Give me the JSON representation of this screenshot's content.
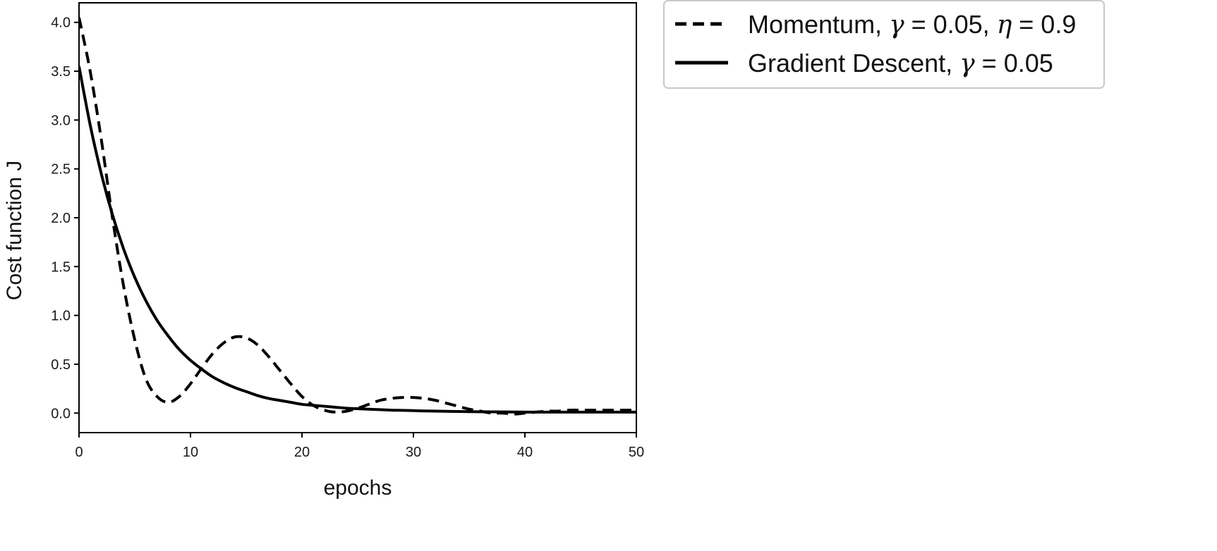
{
  "chart_data": {
    "type": "line",
    "title": "",
    "xlabel": "epochs",
    "ylabel": "Cost function J",
    "xlim": [
      0,
      50
    ],
    "ylim": [
      -0.2,
      4.2
    ],
    "xticks": [
      0,
      10,
      20,
      30,
      40,
      50
    ],
    "xtick_labels": [
      "0",
      "10",
      "20",
      "30",
      "40",
      "50"
    ],
    "yticks": [
      0.0,
      0.5,
      1.0,
      1.5,
      2.0,
      2.5,
      3.0,
      3.5,
      4.0
    ],
    "ytick_labels": [
      "0.0",
      "0.5",
      "1.0",
      "1.5",
      "2.0",
      "2.5",
      "3.0",
      "3.5",
      "4.0"
    ],
    "grid": false,
    "legend_position": "outside-top-right",
    "series": [
      {
        "name": "Momentum, γ = 0.05, η = 0.9",
        "style": "dashed",
        "color": "#000000",
        "x": [
          0,
          1,
          2,
          3,
          4,
          5,
          6,
          7,
          8,
          9,
          10,
          11,
          12,
          13,
          14,
          15,
          16,
          17,
          18,
          19,
          20,
          21,
          22,
          23,
          24,
          25,
          26,
          27,
          28,
          29,
          30,
          31,
          32,
          33,
          34,
          35,
          36,
          37,
          38,
          39,
          40,
          41,
          42,
          43,
          44,
          45,
          46,
          47,
          48,
          49,
          50
        ],
        "y": [
          4.05,
          3.5,
          2.8,
          2.0,
          1.3,
          0.75,
          0.35,
          0.17,
          0.11,
          0.17,
          0.3,
          0.46,
          0.61,
          0.72,
          0.78,
          0.77,
          0.7,
          0.58,
          0.44,
          0.3,
          0.17,
          0.08,
          0.03,
          0.01,
          0.02,
          0.05,
          0.09,
          0.13,
          0.15,
          0.16,
          0.16,
          0.15,
          0.13,
          0.1,
          0.07,
          0.04,
          0.02,
          0.0,
          0.0,
          -0.01,
          0.0,
          0.01,
          0.02,
          0.02,
          0.03,
          0.03,
          0.03,
          0.03,
          0.03,
          0.03,
          0.03
        ]
      },
      {
        "name": "Gradient Descent, γ = 0.05",
        "style": "solid",
        "color": "#000000",
        "x": [
          0,
          1,
          2,
          3,
          4,
          5,
          6,
          7,
          8,
          9,
          10,
          11,
          12,
          13,
          14,
          15,
          16,
          17,
          18,
          19,
          20,
          21,
          22,
          23,
          24,
          25,
          26,
          27,
          28,
          29,
          30,
          31,
          32,
          33,
          34,
          35,
          36,
          37,
          38,
          39,
          40,
          41,
          42,
          43,
          44,
          45,
          46,
          47,
          48,
          49,
          50
        ],
        "y": [
          3.55,
          2.95,
          2.45,
          2.03,
          1.68,
          1.39,
          1.15,
          0.95,
          0.79,
          0.65,
          0.54,
          0.45,
          0.37,
          0.31,
          0.26,
          0.22,
          0.18,
          0.15,
          0.13,
          0.11,
          0.09,
          0.08,
          0.07,
          0.06,
          0.05,
          0.045,
          0.04,
          0.035,
          0.03,
          0.028,
          0.025,
          0.022,
          0.02,
          0.018,
          0.016,
          0.015,
          0.014,
          0.013,
          0.012,
          0.011,
          0.01,
          0.01,
          0.01,
          0.01,
          0.01,
          0.01,
          0.01,
          0.01,
          0.01,
          0.01,
          0.01
        ]
      }
    ],
    "legend": [
      {
        "text_prefix": "Momentum, ",
        "math_1": "γ",
        "text_mid": " = 0.05, ",
        "math_2": "η",
        "text_suffix": " = 0.9"
      },
      {
        "text_prefix": "Gradient Descent, ",
        "math_1": "γ",
        "text_suffix": " = 0.05"
      }
    ]
  }
}
